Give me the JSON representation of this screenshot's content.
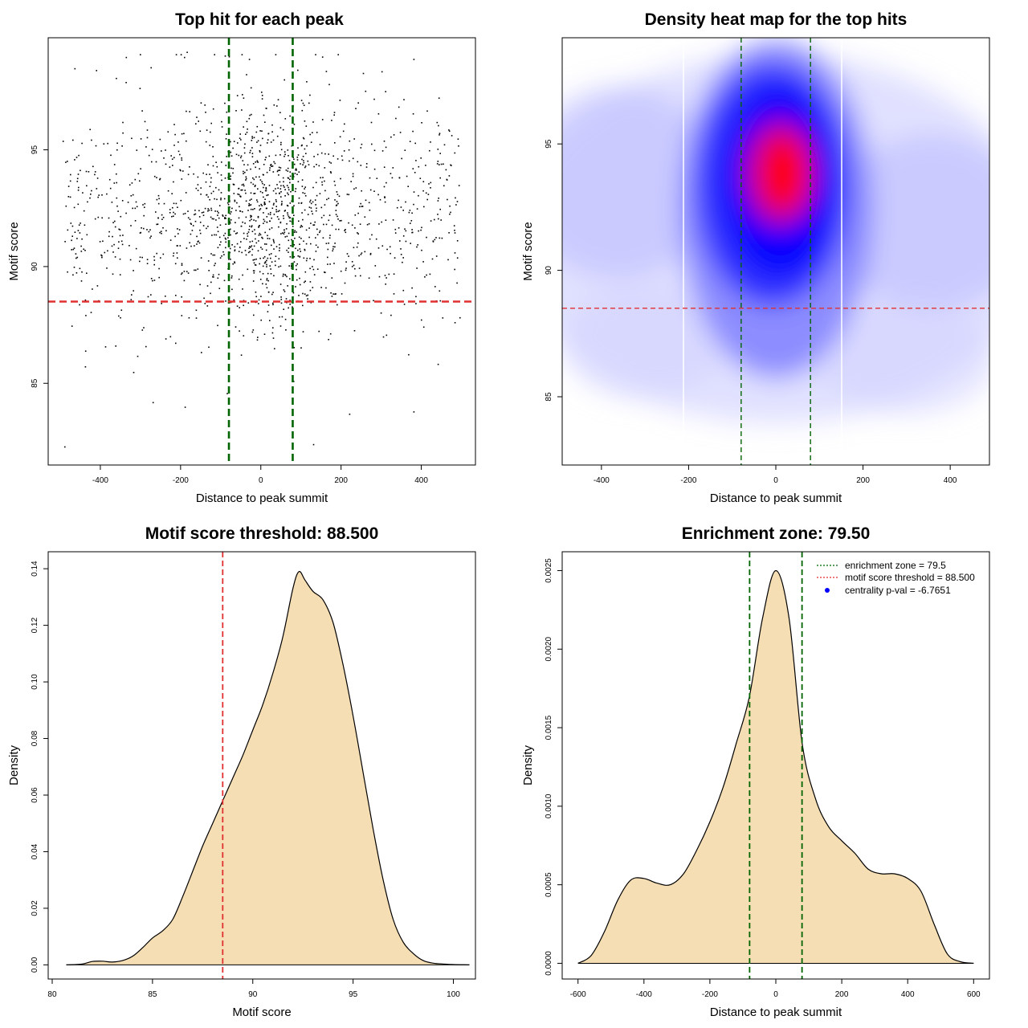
{
  "chart_data": [
    {
      "id": "scatter",
      "type": "scatter",
      "title": "Top hit for each peak",
      "xlabel": "Distance to peak summit",
      "ylabel": "Motif score",
      "xlim": [
        -530,
        535
      ],
      "ylim": [
        81.5,
        99.8
      ],
      "xticks": [
        -400,
        -200,
        0,
        200,
        400
      ],
      "yticks": [
        85,
        90,
        95
      ],
      "vlines": [
        -79.5,
        79.5
      ],
      "vline_color": "#006400",
      "hline": 88.5,
      "hline_color": "#e03030",
      "n_points": 1600,
      "points_sample": [
        {
          "x": -490,
          "y": 82.3
        },
        {
          "x": -190,
          "y": 84.0
        },
        {
          "x": -270,
          "y": 84.2
        },
        {
          "x": 220,
          "y": 83.7
        },
        {
          "x": 380,
          "y": 83.8
        },
        {
          "x": 130,
          "y": 82.4
        },
        {
          "x": -200,
          "y": 99.1
        },
        {
          "x": -185,
          "y": 99.2
        },
        {
          "x": -30,
          "y": 98.9
        },
        {
          "x": 380,
          "y": 98.9
        },
        {
          "x": -465,
          "y": 98.5
        },
        {
          "x": 20,
          "y": 93.5
        },
        {
          "x": -10,
          "y": 92.8
        },
        {
          "x": 40,
          "y": 94.1
        },
        {
          "x": -60,
          "y": 91.0
        },
        {
          "x": 100,
          "y": 95.2
        },
        {
          "x": -150,
          "y": 90.4
        },
        {
          "x": 250,
          "y": 92.6
        },
        {
          "x": -320,
          "y": 93.1
        },
        {
          "x": 420,
          "y": 89.7
        }
      ]
    },
    {
      "id": "heatmap",
      "type": "heatmap",
      "title": "Density heat map for the top hits",
      "xlabel": "Distance to peak summit",
      "ylabel": "Motif score",
      "xlim": [
        -490,
        490
      ],
      "ylim": [
        82.3,
        99.2
      ],
      "xticks": [
        -400,
        -200,
        0,
        200,
        400
      ],
      "yticks": [
        85,
        90,
        95
      ],
      "vlines": [
        -79.5,
        79.5
      ],
      "hline": 88.5,
      "peak": {
        "x": 10,
        "y": 93.7
      },
      "color_scale": [
        "#ffffff",
        "#0000ff",
        "#ff0000"
      ]
    },
    {
      "id": "score_density",
      "type": "area",
      "title": "Motif score threshold: 88.500",
      "xlabel": "Motif score",
      "ylabel": "Density",
      "xlim": [
        79.8,
        101.1
      ],
      "ylim": [
        -0.005,
        0.146
      ],
      "xticks": [
        80,
        85,
        90,
        95,
        100
      ],
      "yticks": [
        0.0,
        0.02,
        0.04,
        0.06,
        0.08,
        0.1,
        0.12,
        0.14
      ],
      "ytick_labels": [
        "0.00",
        "0.02",
        "0.04",
        "0.06",
        "0.08",
        "0.10",
        "0.12",
        "0.14"
      ],
      "vline": 88.5,
      "fill": "#f5deb3",
      "x": [
        80.7,
        81.5,
        82.0,
        82.5,
        83.0,
        83.5,
        84.0,
        84.5,
        85.0,
        85.5,
        86.0,
        86.5,
        87.0,
        87.5,
        88.0,
        88.5,
        89.0,
        89.5,
        90.0,
        90.5,
        91.0,
        91.5,
        92.0,
        92.3,
        92.6,
        93.0,
        93.5,
        94.0,
        94.5,
        95.0,
        95.5,
        96.0,
        96.5,
        97.0,
        97.5,
        98.0,
        98.5,
        99.0,
        99.5,
        100.0,
        100.8
      ],
      "y": [
        0.0,
        0.0003,
        0.0012,
        0.0013,
        0.001,
        0.0015,
        0.003,
        0.006,
        0.0095,
        0.012,
        0.016,
        0.024,
        0.033,
        0.042,
        0.05,
        0.058,
        0.066,
        0.074,
        0.083,
        0.092,
        0.103,
        0.116,
        0.133,
        0.139,
        0.136,
        0.132,
        0.129,
        0.121,
        0.106,
        0.088,
        0.068,
        0.048,
        0.03,
        0.016,
        0.008,
        0.004,
        0.0015,
        0.0006,
        0.0003,
        0.0001,
        0.0
      ]
    },
    {
      "id": "distance_density",
      "type": "area",
      "title": "Enrichment zone: 79.50",
      "xlabel": "Distance to peak summit",
      "ylabel": "Density",
      "xlim": [
        -648,
        648
      ],
      "ylim": [
        -0.0001,
        0.00262
      ],
      "xticks": [
        -600,
        -400,
        -200,
        0,
        200,
        400,
        600
      ],
      "yticks": [
        0.0,
        0.0005,
        0.001,
        0.0015,
        0.002,
        0.0025
      ],
      "ytick_labels": [
        "0.0000",
        "0.0005",
        "0.0010",
        "0.0015",
        "0.0020",
        "0.0025"
      ],
      "vlines": [
        -79.5,
        79.5
      ],
      "fill": "#f5deb3",
      "x": [
        -600,
        -560,
        -520,
        -480,
        -440,
        -400,
        -360,
        -320,
        -280,
        -240,
        -200,
        -160,
        -120,
        -80,
        -40,
        0,
        40,
        80,
        120,
        160,
        200,
        240,
        280,
        320,
        360,
        400,
        440,
        480,
        520,
        560,
        600
      ],
      "y": [
        0.0,
        5e-05,
        0.0002,
        0.0004,
        0.00053,
        0.00054,
        0.00051,
        0.0005,
        0.00057,
        0.00072,
        0.0009,
        0.00112,
        0.0014,
        0.0017,
        0.0022,
        0.0025,
        0.0022,
        0.0014,
        0.00105,
        0.00087,
        0.00078,
        0.0007,
        0.0006,
        0.00057,
        0.00057,
        0.00054,
        0.00046,
        0.00025,
        6e-05,
        1e-05,
        0.0
      ],
      "legend": {
        "position": "top-right",
        "entries": [
          {
            "label": "enrichment zone = 79.5",
            "style": "dotted",
            "color": "#006400"
          },
          {
            "label": "motif score threshold = 88.500",
            "style": "dotted",
            "color": "#e03030"
          },
          {
            "label": "centrality p-val = -6.7651",
            "style": "point",
            "color": "#0000ff"
          }
        ]
      }
    }
  ]
}
